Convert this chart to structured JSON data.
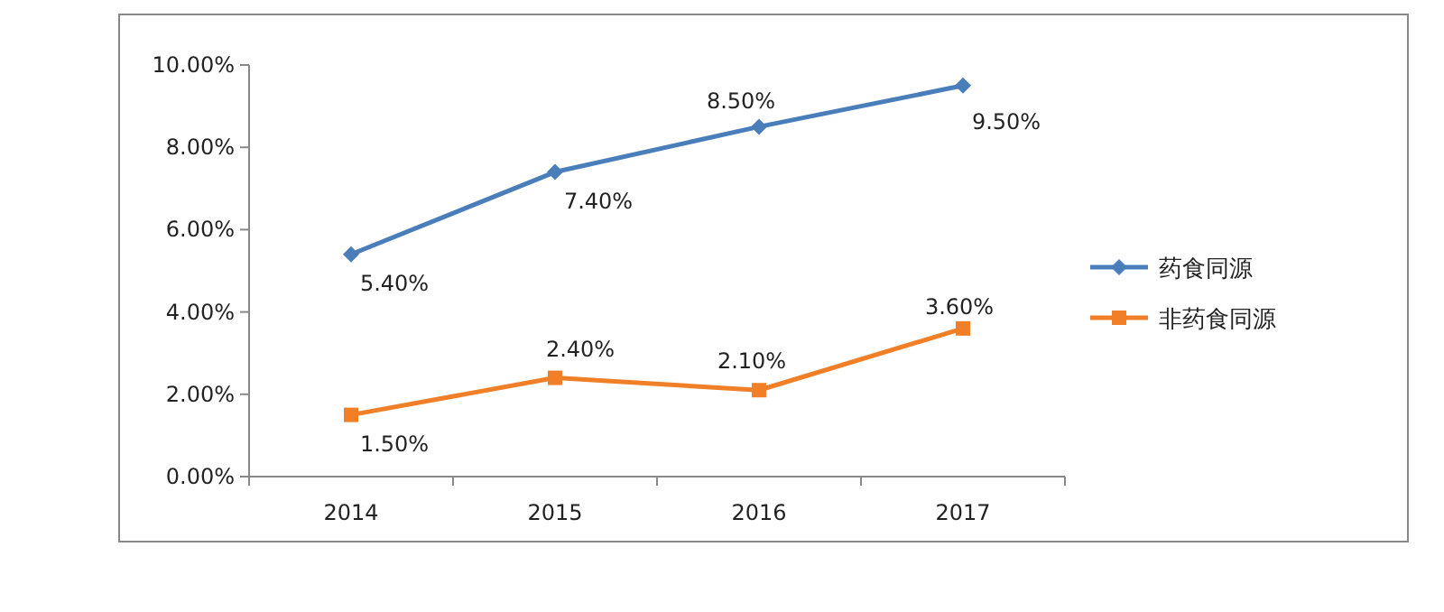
{
  "chart_data": {
    "type": "line",
    "categories": [
      "2014",
      "2015",
      "2016",
      "2017"
    ],
    "series": [
      {
        "name": "药食同源",
        "color": "#4a7ebb",
        "marker": "diamond",
        "values": [
          5.4,
          7.4,
          8.5,
          9.5
        ],
        "value_labels": [
          "5.40%",
          "7.40%",
          "8.50%",
          "9.50%"
        ]
      },
      {
        "name": "非药食同源",
        "color": "#f07f28",
        "marker": "square",
        "values": [
          1.5,
          2.4,
          2.1,
          3.6
        ],
        "value_labels": [
          "1.50%",
          "2.40%",
          "2.10%",
          "3.60%"
        ]
      }
    ],
    "ylim": [
      0,
      10
    ],
    "yticks": [
      {
        "value": 0,
        "label": "0.00%"
      },
      {
        "value": 2,
        "label": "2.00%"
      },
      {
        "value": 4,
        "label": "4.00%"
      },
      {
        "value": 6,
        "label": "6.00%"
      },
      {
        "value": 8,
        "label": "8.00%"
      },
      {
        "value": 10,
        "label": "10.00%"
      }
    ],
    "grid": false,
    "legend": "right",
    "line_style": "solid"
  }
}
